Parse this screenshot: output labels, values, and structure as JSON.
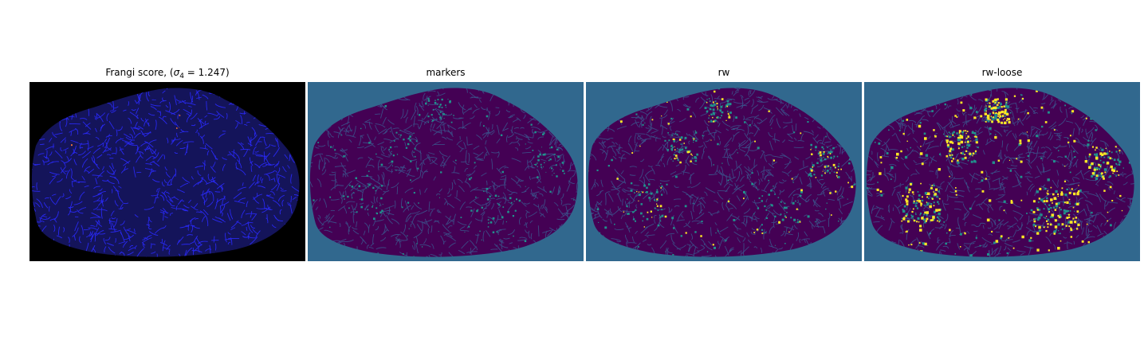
{
  "figure": {
    "panels": [
      {
        "id": "frangi",
        "title_prefix": "Frangi score, (",
        "title_sigma": "σ",
        "title_subscript": "4",
        "title_value": " = 1.247)",
        "colors": {
          "background": "#000000",
          "mask": "#14145a",
          "line": "#2a2aff",
          "hot": "#ff7a3a"
        }
      },
      {
        "id": "markers",
        "title": "markers",
        "colors": {
          "background": "#31688e",
          "mask": "#440154",
          "line": "#3b528b",
          "accent": "#21918c"
        }
      },
      {
        "id": "rw",
        "title": "rw",
        "colors": {
          "background": "#31688e",
          "mask": "#440154",
          "line": "#3b528b",
          "accent": "#21918c",
          "highlight": "#fde725"
        }
      },
      {
        "id": "rw-loose",
        "title": "rw-loose",
        "colors": {
          "background": "#31688e",
          "mask": "#440154",
          "line": "#3b528b",
          "accent": "#21918c",
          "highlight": "#fde725"
        }
      }
    ]
  }
}
